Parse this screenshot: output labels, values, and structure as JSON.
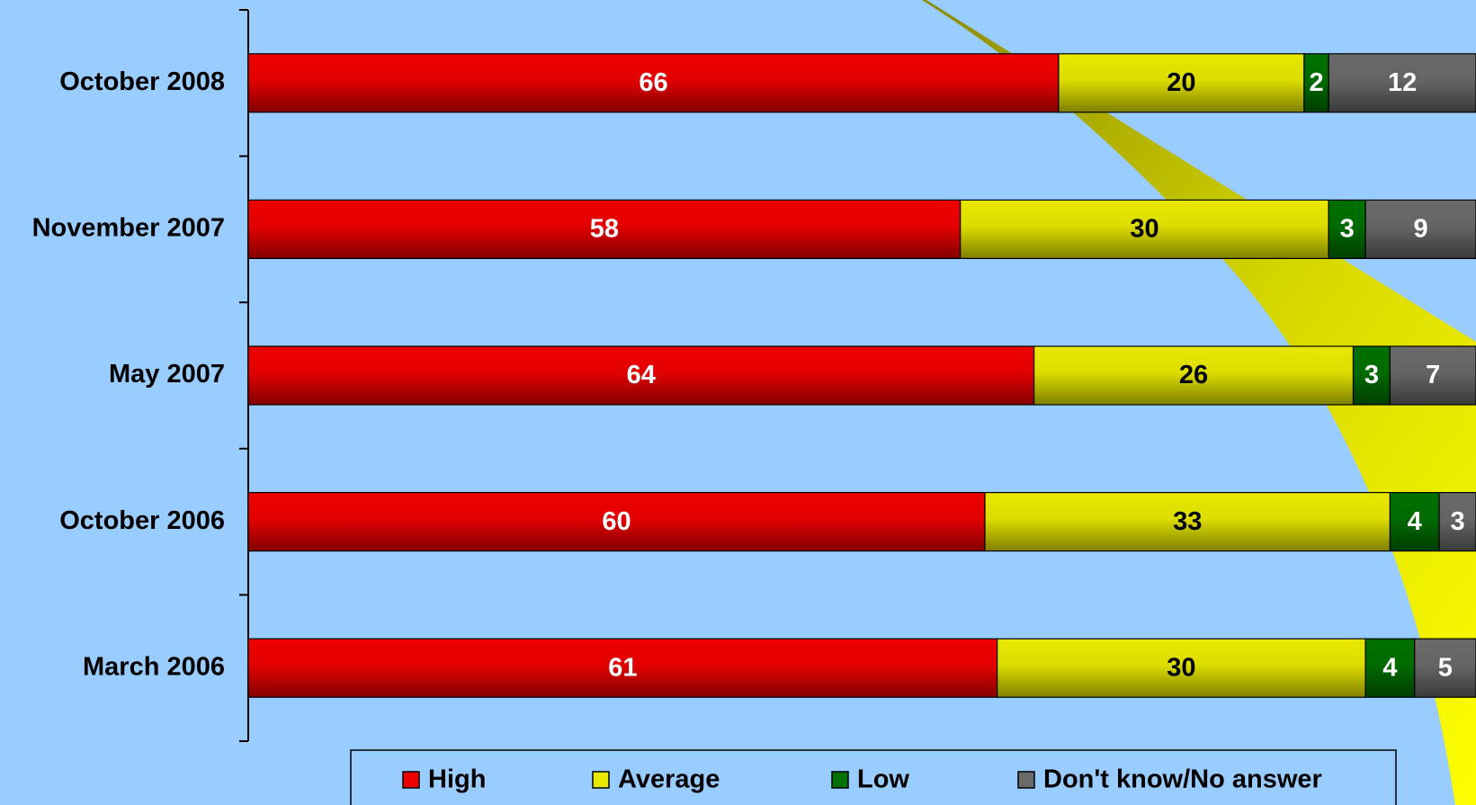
{
  "chart_data": {
    "type": "stacked_bar_horizontal",
    "categories": [
      "October 2008",
      "November 2007",
      "May 2007",
      "October 2006",
      "March 2006"
    ],
    "series": [
      {
        "name": "High",
        "color": "#ee0000",
        "values": [
          66,
          58,
          64,
          60,
          61
        ]
      },
      {
        "name": "Average",
        "color": "#e8e800",
        "values": [
          20,
          30,
          26,
          33,
          30
        ]
      },
      {
        "name": "Low",
        "color": "#007000",
        "values": [
          2,
          3,
          3,
          4,
          4
        ]
      },
      {
        "name": "Don't know/No answer",
        "color": "#6a6a6a",
        "values": [
          12,
          9,
          7,
          3,
          5
        ]
      }
    ],
    "xlim": [
      0,
      100
    ],
    "legend": "bottom"
  }
}
